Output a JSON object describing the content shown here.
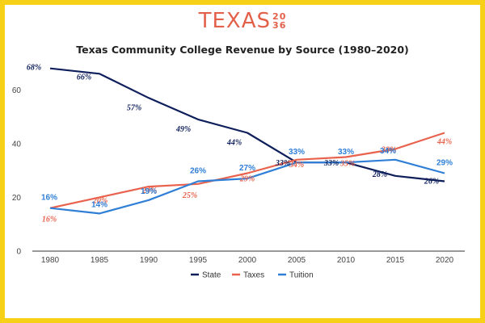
{
  "logo": {
    "word": "TEXAS",
    "num_top": "20",
    "num_bottom": "36",
    "color": "#e3604a"
  },
  "chart_data": {
    "type": "line",
    "title": "Texas Community College Revenue by Source (1980–2020)",
    "xlabel": "",
    "ylabel": "",
    "x": [
      "1980",
      "1985",
      "1990",
      "1995",
      "2000",
      "2005",
      "2010",
      "2015",
      "2020"
    ],
    "ylim": [
      0,
      70
    ],
    "yticks": [
      "0",
      "20",
      "40",
      "60"
    ],
    "grid": false,
    "legend": "bottom",
    "series": [
      {
        "name": "State",
        "color": "#0e1f5b",
        "values": [
          68,
          66,
          57,
          49,
          44,
          33,
          33,
          28,
          26
        ],
        "labels": [
          "68%",
          "66%",
          "57%",
          "49%",
          "44%",
          "33%",
          "33%",
          "28%",
          "26%"
        ]
      },
      {
        "name": "Taxes",
        "color": "#e8624d",
        "values": [
          16,
          20,
          24,
          25,
          29,
          34,
          35,
          38,
          44
        ],
        "labels": [
          "16%",
          "20%",
          "24%",
          "25%",
          "29%",
          "34%",
          "35%",
          "38%",
          "44%"
        ]
      },
      {
        "name": "Tuition",
        "color": "#2f7fd6",
        "values": [
          16,
          14,
          19,
          26,
          27,
          33,
          33,
          34,
          29
        ],
        "labels": [
          "16%",
          "14%",
          "19%",
          "26%",
          "27%",
          "33%",
          "33%",
          "34%",
          "29%"
        ]
      }
    ]
  }
}
